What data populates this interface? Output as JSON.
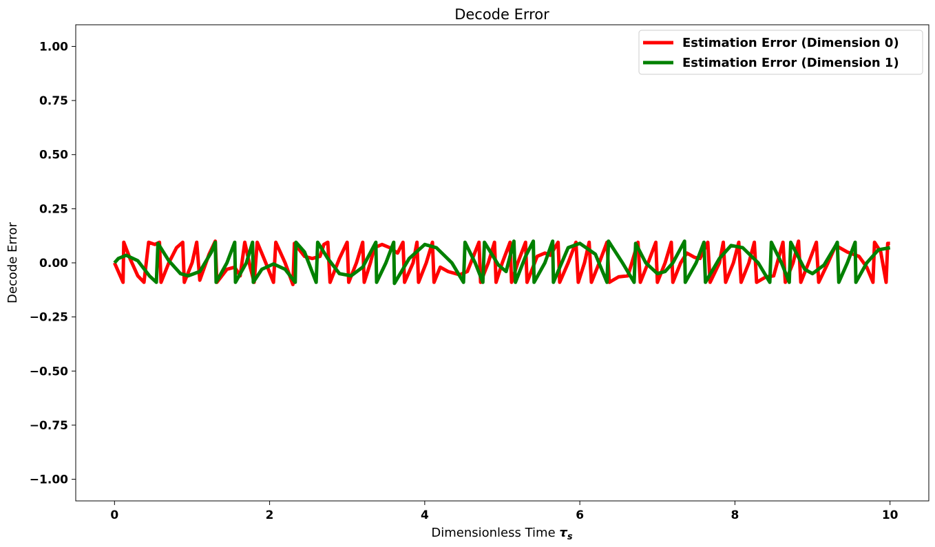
{
  "chart_data": {
    "type": "line",
    "title": "Decode Error",
    "xlabel_prefix": "Dimensionless Time ",
    "xlabel_symbol": "τ",
    "xlabel_subscript": "s",
    "ylabel": "Decode Error",
    "xlim": [
      -0.5,
      10.5
    ],
    "ylim": [
      -1.1,
      1.1
    ],
    "xticks": [
      0,
      2,
      4,
      6,
      8,
      10
    ],
    "xtick_labels": [
      "0",
      "2",
      "4",
      "6",
      "8",
      "10"
    ],
    "yticks": [
      1.0,
      0.75,
      0.5,
      0.25,
      0.0,
      -0.25,
      -0.5,
      -0.75,
      -1.0
    ],
    "ytick_labels": [
      "1.00",
      "0.75",
      "0.50",
      "0.25",
      "0.00",
      "−0.25",
      "−0.50",
      "−0.75",
      "−1.00"
    ],
    "grid": false,
    "legend_position": "top-right",
    "series": [
      {
        "name": "Estimation Error (Dimension 0)",
        "color": "#ff0000",
        "points": [
          [
            0,
            0
          ],
          [
            0.11,
            -0.09
          ],
          [
            0.12,
            0.095
          ],
          [
            0.2,
            0.02
          ],
          [
            0.3,
            -0.06
          ],
          [
            0.38,
            -0.09
          ],
          [
            0.44,
            0.095
          ],
          [
            0.52,
            0.085
          ],
          [
            0.58,
            0.095
          ],
          [
            0.6,
            -0.09
          ],
          [
            0.7,
            0.0
          ],
          [
            0.8,
            0.07
          ],
          [
            0.88,
            0.095
          ],
          [
            0.9,
            -0.09
          ],
          [
            1.0,
            0.0
          ],
          [
            1.06,
            0.095
          ],
          [
            1.1,
            -0.08
          ],
          [
            1.22,
            0.04
          ],
          [
            1.3,
            0.1
          ],
          [
            1.32,
            -0.09
          ],
          [
            1.45,
            -0.03
          ],
          [
            1.55,
            -0.02
          ],
          [
            1.62,
            -0.06
          ],
          [
            1.68,
            0.095
          ],
          [
            1.75,
            -0.02
          ],
          [
            1.8,
            -0.09
          ],
          [
            1.84,
            0.095
          ],
          [
            1.95,
            0.0
          ],
          [
            2.05,
            -0.09
          ],
          [
            2.08,
            0.095
          ],
          [
            2.2,
            0.0
          ],
          [
            2.3,
            -0.1
          ],
          [
            2.32,
            0.09
          ],
          [
            2.45,
            0.03
          ],
          [
            2.55,
            0.02
          ],
          [
            2.65,
            0.03
          ],
          [
            2.7,
            0.085
          ],
          [
            2.75,
            0.095
          ],
          [
            2.78,
            -0.09
          ],
          [
            2.9,
            0.02
          ],
          [
            3.0,
            0.095
          ],
          [
            3.02,
            -0.09
          ],
          [
            3.12,
            0.0
          ],
          [
            3.2,
            0.095
          ],
          [
            3.22,
            -0.09
          ],
          [
            3.3,
            0.0
          ],
          [
            3.35,
            0.07
          ],
          [
            3.45,
            0.085
          ],
          [
            3.55,
            0.07
          ],
          [
            3.65,
            0.045
          ],
          [
            3.72,
            0.095
          ],
          [
            3.74,
            -0.09
          ],
          [
            3.85,
            0.0
          ],
          [
            3.9,
            0.095
          ],
          [
            3.92,
            -0.09
          ],
          [
            4.02,
            0.0
          ],
          [
            4.1,
            0.095
          ],
          [
            4.12,
            -0.09
          ],
          [
            4.2,
            -0.02
          ],
          [
            4.3,
            -0.04
          ],
          [
            4.45,
            -0.055
          ],
          [
            4.55,
            -0.04
          ],
          [
            4.7,
            0.095
          ],
          [
            4.72,
            -0.09
          ],
          [
            4.82,
            0.0
          ],
          [
            4.9,
            0.095
          ],
          [
            4.92,
            -0.09
          ],
          [
            5.0,
            0.0
          ],
          [
            5.1,
            0.095
          ],
          [
            5.12,
            -0.09
          ],
          [
            5.2,
            0.0
          ],
          [
            5.3,
            0.095
          ],
          [
            5.32,
            -0.09
          ],
          [
            5.45,
            0.03
          ],
          [
            5.55,
            0.045
          ],
          [
            5.62,
            0.035
          ],
          [
            5.72,
            0.095
          ],
          [
            5.74,
            -0.09
          ],
          [
            5.85,
            0.0
          ],
          [
            5.95,
            0.095
          ],
          [
            5.98,
            -0.09
          ],
          [
            6.06,
            0.0
          ],
          [
            6.12,
            0.095
          ],
          [
            6.15,
            -0.09
          ],
          [
            6.25,
            0.0
          ],
          [
            6.35,
            0.095
          ],
          [
            6.38,
            -0.09
          ],
          [
            6.5,
            -0.065
          ],
          [
            6.62,
            -0.06
          ],
          [
            6.75,
            0.095
          ],
          [
            6.78,
            -0.09
          ],
          [
            6.88,
            0.0
          ],
          [
            6.98,
            0.095
          ],
          [
            7.0,
            -0.09
          ],
          [
            7.1,
            0.0
          ],
          [
            7.18,
            0.095
          ],
          [
            7.2,
            -0.09
          ],
          [
            7.3,
            0.0
          ],
          [
            7.38,
            0.045
          ],
          [
            7.48,
            0.025
          ],
          [
            7.55,
            0.02
          ],
          [
            7.65,
            0.095
          ],
          [
            7.68,
            -0.09
          ],
          [
            7.8,
            0.0
          ],
          [
            7.85,
            0.095
          ],
          [
            7.88,
            -0.09
          ],
          [
            7.98,
            0.0
          ],
          [
            8.05,
            0.095
          ],
          [
            8.08,
            -0.09
          ],
          [
            8.18,
            0.0
          ],
          [
            8.25,
            0.095
          ],
          [
            8.28,
            -0.09
          ],
          [
            8.4,
            -0.065
          ],
          [
            8.5,
            -0.06
          ],
          [
            8.62,
            0.095
          ],
          [
            8.65,
            -0.09
          ],
          [
            8.75,
            0.0
          ],
          [
            8.82,
            0.1
          ],
          [
            8.85,
            -0.09
          ],
          [
            8.95,
            0.0
          ],
          [
            9.05,
            0.095
          ],
          [
            9.08,
            -0.09
          ],
          [
            9.2,
            0.0
          ],
          [
            9.3,
            0.08
          ],
          [
            9.45,
            0.05
          ],
          [
            9.6,
            0.03
          ],
          [
            9.7,
            -0.02
          ],
          [
            9.78,
            -0.09
          ],
          [
            9.8,
            0.095
          ],
          [
            9.88,
            0.05
          ],
          [
            9.95,
            -0.09
          ],
          [
            9.97,
            0.09
          ],
          [
            10.0,
            0.09
          ]
        ]
      },
      {
        "name": "Estimation Error (Dimension 1)",
        "color": "#008000",
        "points": [
          [
            0,
            0
          ],
          [
            0.05,
            0.02
          ],
          [
            0.15,
            0.035
          ],
          [
            0.3,
            0.01
          ],
          [
            0.45,
            -0.06
          ],
          [
            0.54,
            -0.09
          ],
          [
            0.56,
            0.09
          ],
          [
            0.7,
            0.01
          ],
          [
            0.85,
            -0.05
          ],
          [
            0.95,
            -0.06
          ],
          [
            1.1,
            -0.04
          ],
          [
            1.25,
            0.05
          ],
          [
            1.3,
            0.095
          ],
          [
            1.31,
            -0.09
          ],
          [
            1.45,
            0.0
          ],
          [
            1.55,
            0.095
          ],
          [
            1.56,
            -0.09
          ],
          [
            1.7,
            0.0
          ],
          [
            1.78,
            0.095
          ],
          [
            1.79,
            -0.09
          ],
          [
            1.9,
            -0.03
          ],
          [
            2.05,
            -0.005
          ],
          [
            2.2,
            -0.03
          ],
          [
            2.33,
            -0.09
          ],
          [
            2.34,
            0.095
          ],
          [
            2.45,
            0.05
          ],
          [
            2.6,
            -0.09
          ],
          [
            2.62,
            0.095
          ],
          [
            2.75,
            0.02
          ],
          [
            2.9,
            -0.05
          ],
          [
            3.05,
            -0.06
          ],
          [
            3.2,
            -0.02
          ],
          [
            3.37,
            0.095
          ],
          [
            3.38,
            -0.09
          ],
          [
            3.5,
            0.0
          ],
          [
            3.6,
            0.095
          ],
          [
            3.61,
            -0.095
          ],
          [
            3.8,
            0.02
          ],
          [
            4.0,
            0.085
          ],
          [
            4.15,
            0.07
          ],
          [
            4.35,
            0.0
          ],
          [
            4.5,
            -0.09
          ],
          [
            4.52,
            0.095
          ],
          [
            4.65,
            0.0
          ],
          [
            4.75,
            -0.09
          ],
          [
            4.77,
            0.095
          ],
          [
            4.95,
            -0.01
          ],
          [
            5.05,
            -0.04
          ],
          [
            5.15,
            0.1
          ],
          [
            5.17,
            -0.09
          ],
          [
            5.3,
            0.03
          ],
          [
            5.4,
            0.1
          ],
          [
            5.41,
            -0.09
          ],
          [
            5.55,
            0.0
          ],
          [
            5.65,
            0.1
          ],
          [
            5.66,
            -0.09
          ],
          [
            5.85,
            0.07
          ],
          [
            6.0,
            0.09
          ],
          [
            6.2,
            0.04
          ],
          [
            6.35,
            -0.09
          ],
          [
            6.37,
            0.1
          ],
          [
            6.55,
            0.0
          ],
          [
            6.7,
            -0.09
          ],
          [
            6.72,
            0.09
          ],
          [
            6.85,
            0.0
          ],
          [
            7.0,
            -0.05
          ],
          [
            7.1,
            -0.04
          ],
          [
            7.2,
            0.0
          ],
          [
            7.35,
            0.1
          ],
          [
            7.36,
            -0.09
          ],
          [
            7.5,
            0.0
          ],
          [
            7.6,
            0.095
          ],
          [
            7.62,
            -0.09
          ],
          [
            7.8,
            0.02
          ],
          [
            7.95,
            0.08
          ],
          [
            8.1,
            0.07
          ],
          [
            8.3,
            0.0
          ],
          [
            8.45,
            -0.09
          ],
          [
            8.47,
            0.095
          ],
          [
            8.6,
            0.0
          ],
          [
            8.7,
            -0.09
          ],
          [
            8.72,
            0.095
          ],
          [
            8.9,
            -0.03
          ],
          [
            9.0,
            -0.05
          ],
          [
            9.15,
            -0.01
          ],
          [
            9.3,
            0.08
          ],
          [
            9.32,
            0.095
          ],
          [
            9.34,
            -0.09
          ],
          [
            9.45,
            0.0
          ],
          [
            9.55,
            0.095
          ],
          [
            9.56,
            -0.09
          ],
          [
            9.7,
            0.0
          ],
          [
            9.85,
            0.06
          ],
          [
            10.0,
            0.07
          ]
        ]
      }
    ]
  }
}
